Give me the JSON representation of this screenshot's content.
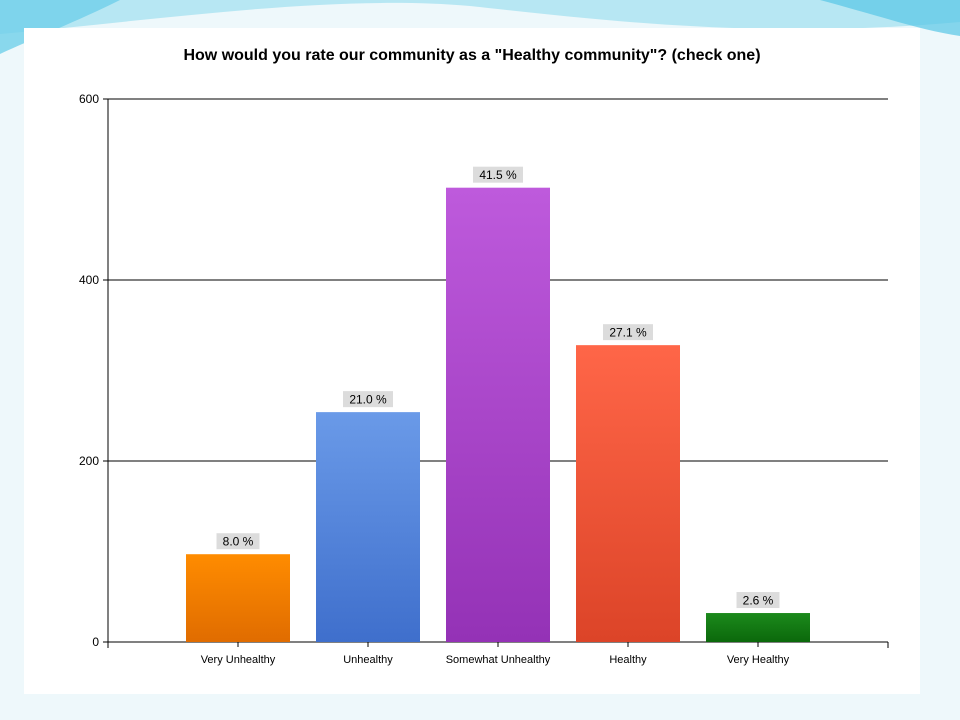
{
  "slide": {
    "background": "#eef8fb",
    "decor_color": "#57c6e6"
  },
  "chart_data": {
    "type": "bar",
    "title": "How would you rate our community as a \"Healthy community\"? (check one)",
    "xlabel": "",
    "ylabel": "",
    "ylim": [
      0,
      600
    ],
    "yticks": [
      0,
      200,
      400,
      600
    ],
    "grid": true,
    "legend": "none",
    "categories": [
      "Very Unhealthy",
      "Unhealthy",
      "Somewhat Unhealthy",
      "Healthy",
      "Very Healthy"
    ],
    "values": [
      97,
      254,
      502,
      328,
      32
    ],
    "labels": [
      "8.0 %",
      "21.0 %",
      "41.5 %",
      "27.1 %",
      "2.6 %"
    ],
    "colors": [
      [
        "#ff8c00",
        "#e06c00"
      ],
      [
        "#6a9ae8",
        "#3f6fcc"
      ],
      [
        "#be5adc",
        "#9432b6"
      ],
      [
        "#ff6648",
        "#dc4428"
      ],
      [
        "#1c8a1c",
        "#0b680b"
      ]
    ]
  }
}
